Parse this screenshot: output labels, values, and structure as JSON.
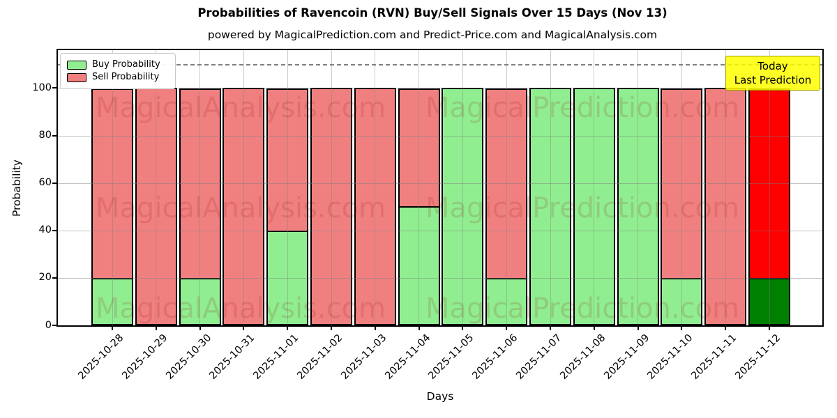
{
  "page": {
    "title": "Probabilities of Ravencoin (RVN) Buy/Sell Signals Over 15 Days (Nov 13)",
    "subtitle": "powered by MagicalPrediction.com and Predict-Price.com and MagicalAnalysis.com"
  },
  "axes": {
    "xlabel": "Days",
    "ylabel": "Probability"
  },
  "legend": [
    {
      "label": "Buy Probability",
      "color": "#90EE90"
    },
    {
      "label": "Sell Probability",
      "color": "#F08080"
    }
  ],
  "annotation": {
    "line1": "Today",
    "line2": "Last Prediction",
    "bg_color": "#FFFF00"
  },
  "watermarks": {
    "left": "MagicalAnalysis.com",
    "right": "MagicalPrediction.com"
  },
  "colors": {
    "buy": "#90EE90",
    "sell": "#F08080",
    "today_buy": "#008000",
    "today_sell": "#FF0000",
    "grid": "#7d7d7d",
    "dashed_line": "#7f7f7f",
    "bar_border": "#000000"
  },
  "chart_data": {
    "type": "bar",
    "stacked": true,
    "title": "Probabilities of Ravencoin (RVN) Buy/Sell Signals Over 15 Days (Nov 13)",
    "xlabel": "Days",
    "ylabel": "Probability",
    "categories": [
      "2025-10-28",
      "2025-10-29",
      "2025-10-30",
      "2025-10-31",
      "2025-11-01",
      "2025-11-02",
      "2025-11-03",
      "2025-11-04",
      "2025-11-05",
      "2025-11-06",
      "2025-11-07",
      "2025-11-08",
      "2025-11-09",
      "2025-11-10",
      "2025-11-11",
      "2025-11-12"
    ],
    "series": [
      {
        "name": "Buy Probability",
        "values": [
          19.5,
          0,
          19.5,
          0,
          39.5,
          0,
          0,
          49.5,
          100,
          19.5,
          100,
          100,
          100,
          19.5,
          0,
          19.5
        ]
      },
      {
        "name": "Sell Probability",
        "values": [
          80.5,
          100,
          80.5,
          100,
          60.5,
          100,
          100,
          50.5,
          0,
          80.5,
          0,
          0,
          0,
          80.5,
          100,
          80.5
        ]
      }
    ],
    "yticks": [
      0,
      20,
      40,
      60,
      80,
      100
    ],
    "ylim": [
      0,
      116
    ],
    "dashed_line_y": 110,
    "today_index": 15,
    "grid": true,
    "legend_position": "upper left"
  }
}
